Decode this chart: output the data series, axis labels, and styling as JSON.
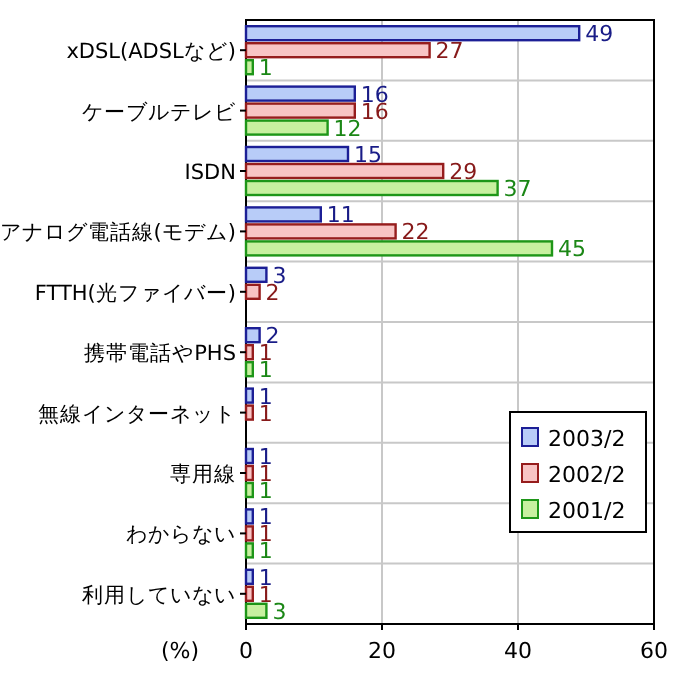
{
  "chart_data": {
    "type": "bar",
    "orientation": "horizontal",
    "xlabel": "(%)",
    "categories": [
      "xDSL(ADSLなど)",
      "ケーブルテレビ",
      "ISDN",
      "アナログ電話線(モデム)",
      "FTTH(光ファイバー)",
      "携帯電話やPHS",
      "無線インターネット",
      "専用線",
      "わからない",
      "利用していない"
    ],
    "series": [
      {
        "name": "2003/2",
        "color": "#b8ccf8",
        "values": [
          49,
          16,
          15,
          11,
          3,
          2,
          1,
          1,
          1,
          1
        ]
      },
      {
        "name": "2002/2",
        "color": "#f8c4c4",
        "values": [
          27,
          16,
          29,
          22,
          2,
          1,
          1,
          1,
          1,
          1
        ]
      },
      {
        "name": "2001/2",
        "color": "#c8f0a0",
        "values": [
          1,
          12,
          37,
          45,
          null,
          1,
          null,
          1,
          1,
          3
        ]
      }
    ],
    "xlim": [
      0,
      60
    ],
    "xticks": [
      0,
      20,
      40,
      60
    ],
    "grid": true,
    "legend": "right",
    "data_labels": true
  }
}
